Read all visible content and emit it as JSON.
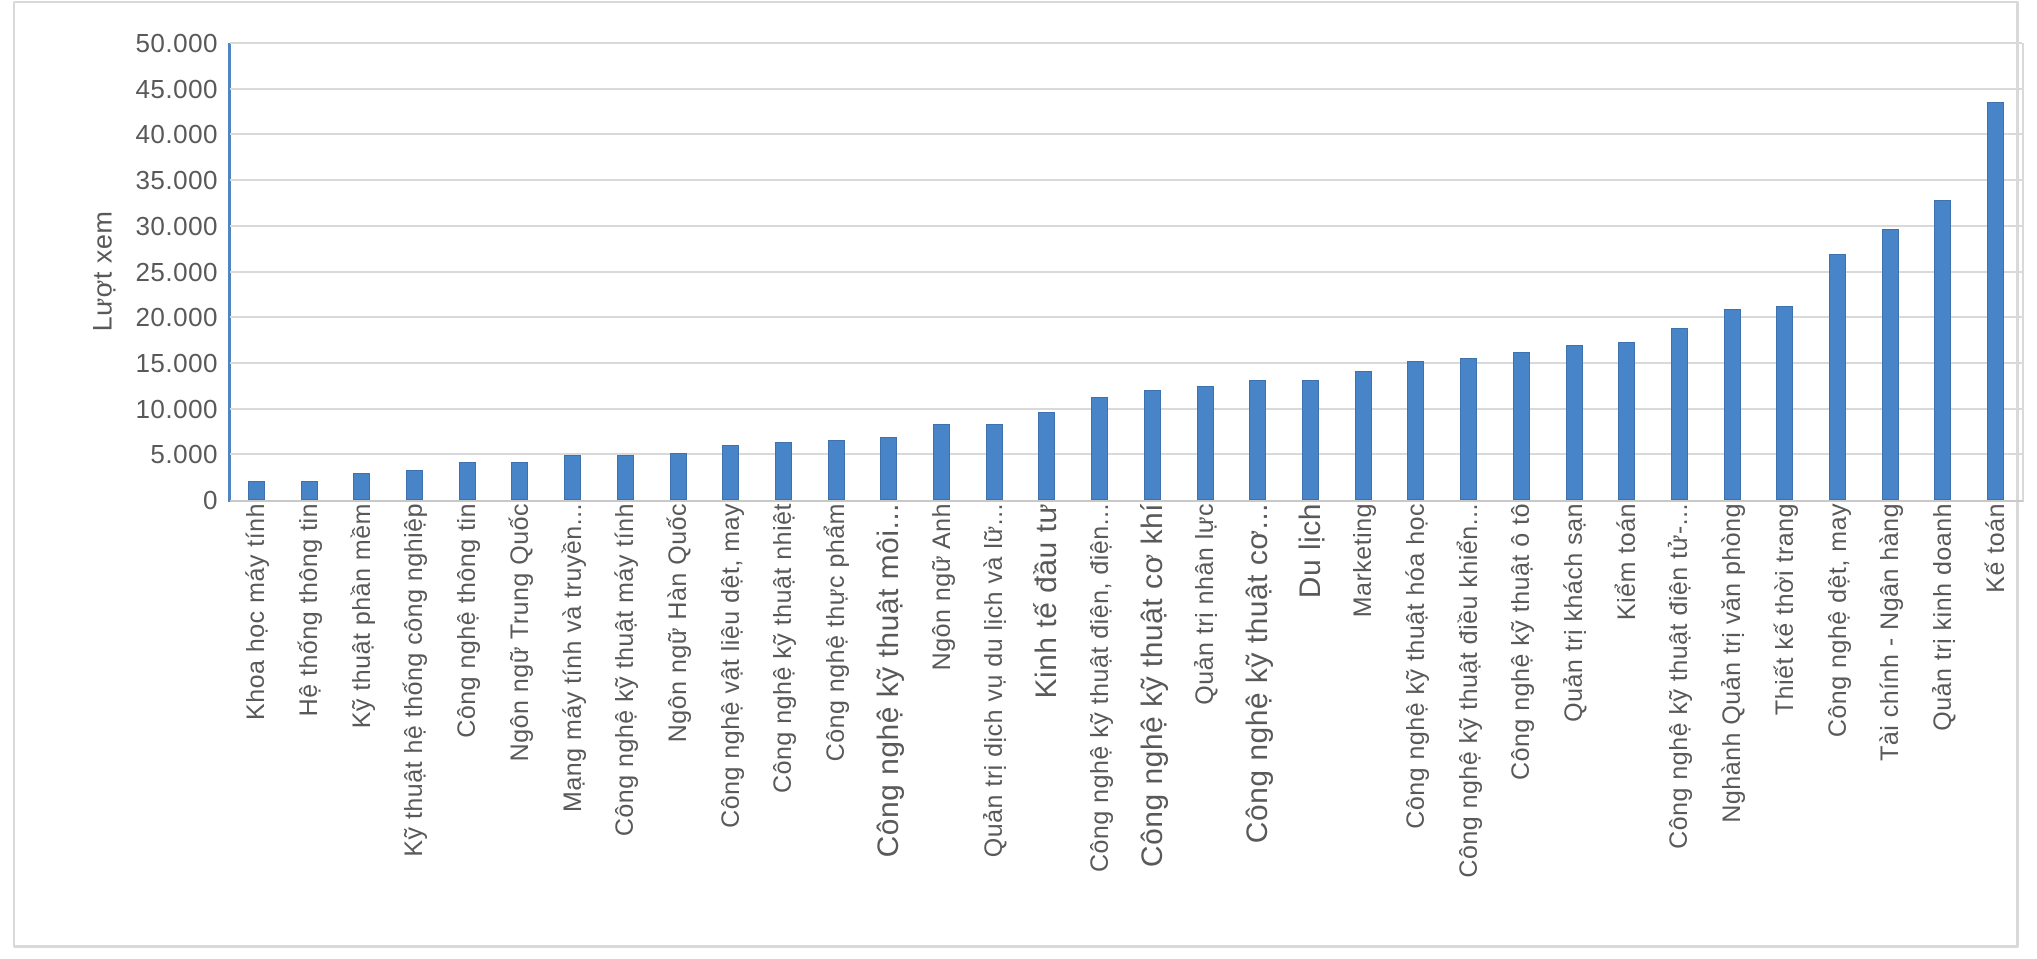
{
  "chart_data": {
    "type": "bar",
    "title": "",
    "xlabel": "",
    "ylabel": "Lượt xem",
    "ylim": [
      0,
      50000
    ],
    "ytick_step": 5000,
    "ytick_labels": [
      "50.000",
      "45.000",
      "40.000",
      "35.000",
      "30.000",
      "25.000",
      "20.000",
      "15.000",
      "10.000",
      "5.000",
      "0"
    ],
    "grid": true,
    "legend": false,
    "categories": [
      "Khoa học máy tính",
      "Hệ thống thông tin",
      "Kỹ thuật phần mềm",
      "Kỹ thuật hệ thống công nghiệp",
      "Công nghệ thông tin",
      "Ngôn ngữ Trung Quốc",
      "Mạng máy tính và truyền...",
      "Công nghệ kỹ thuật máy tính",
      "Ngôn ngữ Hàn Quốc",
      "Công nghệ vật liệu dệt, may",
      "Công nghệ kỹ thuật nhiệt",
      "Công nghệ thực phẩm",
      "Công nghệ kỹ thuật môi...",
      "Ngôn ngữ Anh",
      "Quản trị dịch vụ du lịch và lữ...",
      "Kinh tế đầu tư",
      "Công nghệ kỹ thuật điện, điện...",
      "Công nghệ kỹ thuật cơ khí",
      "Quản trị nhân lực",
      "Công nghệ kỹ thuật cơ...",
      "Du lịch",
      "Marketing",
      "Công nghệ kỹ thuật hóa học",
      "Công nghệ kỹ thuật điều khiển...",
      "Công nghệ kỹ thuật ô tô",
      "Quản trị khách sạn",
      "Kiểm toán",
      "Công nghệ kỹ thuật điện tử-...",
      "Nghành Quản trị văn phòng",
      "Thiết kế thời trang",
      "Công nghệ dệt, may",
      "Tài chính - Ngân hàng",
      "Quản trị kinh doanh",
      "Kế toán"
    ],
    "values": [
      2100,
      2100,
      3000,
      3300,
      4200,
      4200,
      4900,
      4900,
      5100,
      6000,
      6300,
      6600,
      6900,
      8300,
      8300,
      9600,
      11300,
      12000,
      12500,
      13100,
      13100,
      14100,
      15200,
      15500,
      16200,
      17000,
      17300,
      18800,
      20900,
      21200,
      26900,
      29700,
      32800,
      43600
    ],
    "large_font_category_indexes": [
      12,
      15,
      17,
      19,
      20
    ]
  },
  "colors": {
    "bar_fill": "#4884c8",
    "bar_border": "#3d72ae",
    "y_axis_line": "#4e86c0",
    "gridline": "#d9d9d9",
    "x_axis_line": "#c8c8c8",
    "text": "#595959",
    "frame_border": "#d9d9d9"
  }
}
